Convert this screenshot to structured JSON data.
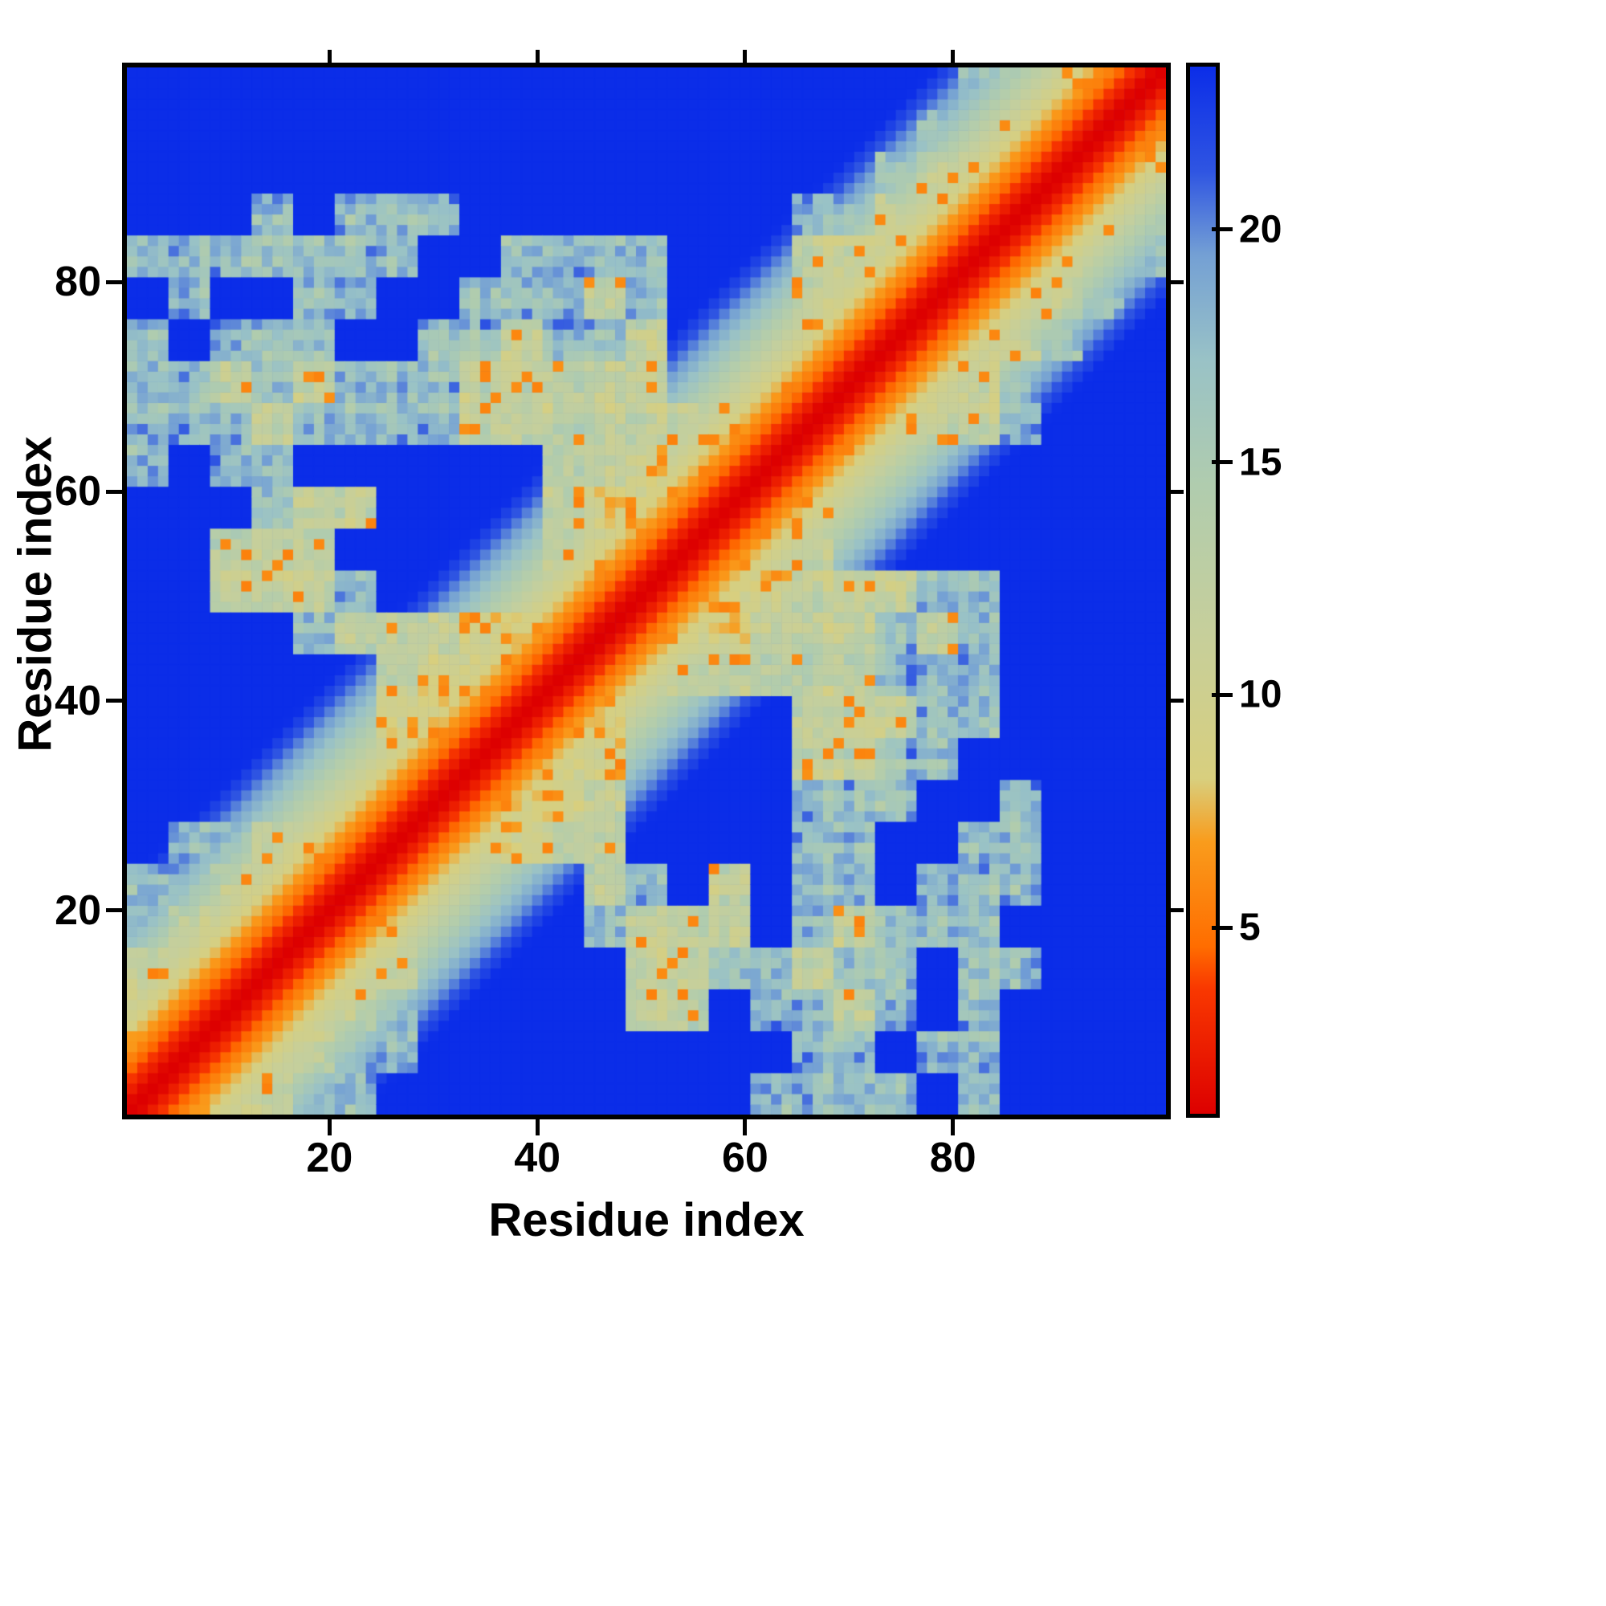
{
  "figure": {
    "xlabel": "Residue index",
    "ylabel": "Residue index",
    "x_ticks": [
      20,
      40,
      60,
      80
    ],
    "y_ticks": [
      20,
      40,
      60,
      80
    ],
    "colorbar_ticks": [
      5,
      10,
      15,
      20
    ]
  },
  "chart_data": {
    "type": "heatmap",
    "title": "",
    "xlabel": "Residue index",
    "ylabel": "Residue index",
    "n_residues": 100,
    "x_range": [
      1,
      100
    ],
    "y_range": [
      1,
      100
    ],
    "value_range": [
      1,
      23.5
    ],
    "colorbar_ticks": [
      5,
      10,
      15,
      20
    ],
    "legend_position": "right-colorbar",
    "grid": false,
    "description": "Symmetric residue-residue distance/contact map. Red diagonal band = smallest values, orange flanking band, pale green mid-range contact regions with orange speckle contacts, grey-blue outer halo, saturated blue = values at/above colour scale maximum (no contact).",
    "background_cap_color": "#0b2de8",
    "colormap_stops": [
      [
        0.0,
        "#dd0000"
      ],
      [
        0.12,
        "#f93800"
      ],
      [
        0.16,
        "#ff6d00"
      ],
      [
        0.26,
        "#f99c1c"
      ],
      [
        0.32,
        "#d8cf7e"
      ],
      [
        0.46,
        "#c6cf9b"
      ],
      [
        0.6,
        "#b0ccae"
      ],
      [
        0.72,
        "#99c2c6"
      ],
      [
        0.82,
        "#74a0d4"
      ],
      [
        0.9,
        "#2f55e2"
      ],
      [
        1.0,
        "#0b2de8"
      ]
    ],
    "diagonal": {
      "slope_per_residue": 1.05,
      "offset": 0.3
    },
    "code_values": {
      ".": 24,
      "a": 17.5,
      "b": 12,
      "c": 9.5
    },
    "jitter_amplitude": 4.5,
    "crosshatch_amplitude": 2.5,
    "speckle": {
      "probability": 0.08,
      "value_min": 5.5
    },
    "region_grid": {
      "cell_size_residues": 4,
      "note": "25x25 coarse map of the matrix, rows listed bottom-to-top; upper triangle (col>=row) is authoritative, matrix is symmetric. '.'=far/blue, 'a'=outer halo, 'b'=mid contact green, 'c'=close contact",
      "rows_bottom_to_top": [
        "ccbbaa.........aaaa.a....",
        "cccbbaa.........aa.aa....",
        "bcccbba.....bb.aaba.a....",
        "bbcccbb.....bbaabaa.aa...",
        "abbcccb....abbb.abaaa....",
        "aabbccc....ba.b.aa.aaa...",
        ".aabbcccbcbb....aa..aa...",
        "......cccccb....aaa..a...",
        "......bccccc....bbaa.....",
        "......cccccc....bbbaa....",
        "......bcccccbbbbbbaaa....",
        ".....bbbcccccccbbbaba....",
        ".....a....bcccccbbbaa....",
        "..........bccccbb........",
        "...abb....bcccccb........",
        "..aa......bbcbcccb.......",
        "aaabaaaabbbbbbbcccbbba...",
        "aababaaabbbbb..bcccbba...",
        "a.aaa..aabaab...bcccbba..",
        ".a..aa..ababa...bbcccbba.",
        "aaaaaaa..aaaa...bbbcccbaa",
        "...a.aaa........aabbcccba",
        "..................abbcccb",
        "...................aabccc",
        "....................aabcc"
      ]
    }
  }
}
